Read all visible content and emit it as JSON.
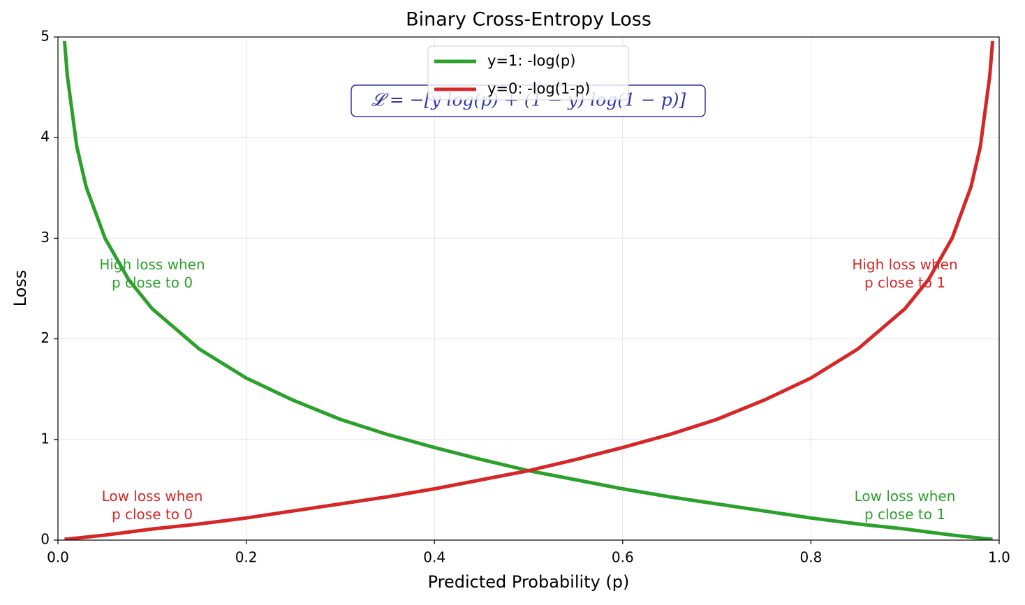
{
  "chart_data": {
    "type": "line",
    "title": "Binary Cross-Entropy Loss",
    "x_label": "Predicted Probability (p)",
    "y_label": "Loss",
    "x": [
      0.007,
      0.01,
      0.02,
      0.03,
      0.05,
      0.075,
      0.1,
      0.15,
      0.2,
      0.25,
      0.3,
      0.35,
      0.4,
      0.45,
      0.5,
      0.55,
      0.6,
      0.65,
      0.7,
      0.75,
      0.8,
      0.85,
      0.9,
      0.925,
      0.95,
      0.97,
      0.98,
      0.99,
      0.993
    ],
    "series": [
      {
        "name": "y=1: -log(p)",
        "color": "#2ca02c",
        "values": [
          4.96,
          4.61,
          3.91,
          3.51,
          3.0,
          2.59,
          2.3,
          1.9,
          1.61,
          1.39,
          1.2,
          1.05,
          0.92,
          0.8,
          0.69,
          0.6,
          0.51,
          0.43,
          0.36,
          0.29,
          0.22,
          0.16,
          0.11,
          0.08,
          0.05,
          0.03,
          0.02,
          0.01,
          0.01
        ]
      },
      {
        "name": "y=0: -log(1-p)",
        "color": "#d62728",
        "values": [
          0.01,
          0.01,
          0.02,
          0.03,
          0.05,
          0.08,
          0.11,
          0.16,
          0.22,
          0.29,
          0.36,
          0.43,
          0.51,
          0.6,
          0.69,
          0.8,
          0.92,
          1.05,
          1.2,
          1.39,
          1.61,
          1.9,
          2.3,
          2.59,
          3.0,
          3.51,
          3.91,
          4.61,
          4.96
        ]
      }
    ],
    "xlim": [
      0,
      1
    ],
    "ylim": [
      0,
      5
    ],
    "xticks": [
      {
        "value": 0,
        "label": "0.0"
      },
      0.2,
      0.4,
      0.6,
      0.8,
      {
        "value": 1,
        "label": "1.0"
      }
    ],
    "yticks": [
      0,
      1,
      2,
      3,
      4,
      5
    ],
    "grid": true,
    "legend": "upper center",
    "formula": "𝓛 = −[y log(p) + (1 − y) log(1 − p)]",
    "formula_color": "#3333aa",
    "annotations": [
      {
        "lines": [
          "High loss when",
          "p close to 0"
        ],
        "color": "#2ca02c"
      },
      {
        "lines": [
          "Low loss when",
          "p close to 0"
        ],
        "color": "#d62728"
      },
      {
        "lines": [
          "High loss when",
          "p close to 1"
        ],
        "color": "#d62728"
      },
      {
        "lines": [
          "Low loss when",
          "p close to 1"
        ],
        "color": "#2ca02c"
      }
    ]
  }
}
